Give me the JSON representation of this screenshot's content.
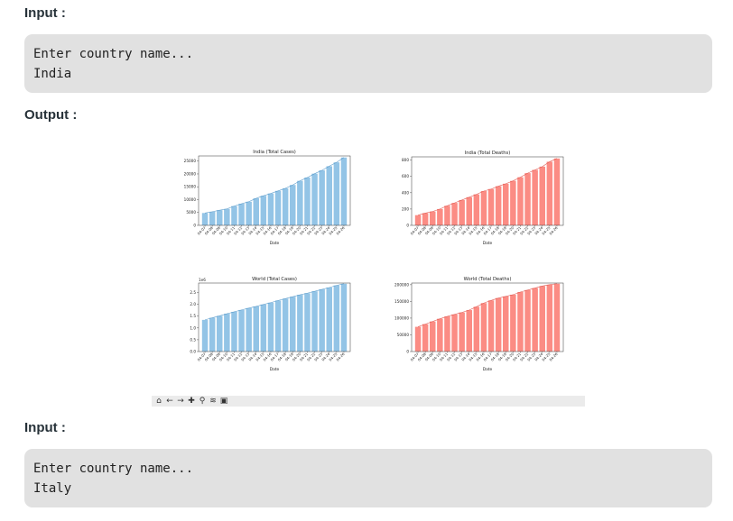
{
  "sections": [
    {
      "heading": "Input :",
      "lines": [
        "Enter country name...",
        "India"
      ]
    },
    {
      "heading": "Output :"
    },
    {
      "heading": "Input :",
      "lines": [
        "Enter country name...",
        "Italy"
      ]
    }
  ],
  "toolbar": {
    "icons": [
      "home-icon",
      "back-icon",
      "forward-icon",
      "pan-icon",
      "zoom-icon",
      "configure-subplots-icon",
      "save-icon"
    ]
  },
  "colors": {
    "cases": "#93c4e6",
    "deaths": "#fb8c84",
    "cases_edge": "#5c9ccb",
    "deaths_edge": "#e05b53"
  },
  "chart_data": [
    {
      "type": "bar",
      "title": "India (Total Cases)",
      "xlabel": "Date",
      "ylabel": "",
      "categories": [
        "04-07",
        "04-08",
        "04-09",
        "04-10",
        "04-11",
        "04-12",
        "04-13",
        "04-14",
        "04-15",
        "04-16",
        "04-17",
        "04-18",
        "04-19",
        "04-20",
        "04-21",
        "04-22",
        "04-23",
        "04-24",
        "04-25",
        "04-26"
      ],
      "values": [
        4800,
        5300,
        5900,
        6400,
        7500,
        8400,
        9200,
        10500,
        11500,
        12400,
        13400,
        14400,
        15700,
        17300,
        18600,
        20100,
        21400,
        23000,
        24500,
        26400
      ],
      "ylim": [
        0,
        27000
      ],
      "yticks": [
        0,
        5000,
        10000,
        15000,
        20000,
        25000
      ],
      "ytick_labels": [
        "0",
        "5000",
        "10000",
        "15000",
        "20000",
        "25000"
      ],
      "scale_label": "",
      "color": "cases"
    },
    {
      "type": "bar",
      "title": "India (Total Deaths)",
      "xlabel": "Date",
      "ylabel": "",
      "categories": [
        "04-07",
        "04-08",
        "04-09",
        "04-10",
        "04-11",
        "04-12",
        "04-13",
        "04-14",
        "04-15",
        "04-16",
        "04-17",
        "04-18",
        "04-19",
        "04-20",
        "04-21",
        "04-22",
        "04-23",
        "04-24",
        "04-25",
        "04-26"
      ],
      "values": [
        125,
        150,
        170,
        200,
        240,
        275,
        310,
        345,
        380,
        420,
        445,
        480,
        510,
        545,
        590,
        640,
        680,
        720,
        780,
        820
      ],
      "ylim": [
        0,
        840
      ],
      "yticks": [
        0,
        200,
        400,
        600,
        800
      ],
      "ytick_labels": [
        "0",
        "200",
        "400",
        "600",
        "800"
      ],
      "scale_label": "",
      "color": "deaths"
    },
    {
      "type": "bar",
      "title": "World (Total Cases)",
      "xlabel": "Date",
      "ylabel": "",
      "categories": [
        "04-07",
        "04-08",
        "04-09",
        "04-10",
        "04-11",
        "04-12",
        "04-13",
        "04-14",
        "04-15",
        "04-16",
        "04-17",
        "04-18",
        "04-19",
        "04-20",
        "04-21",
        "04-22",
        "04-23",
        "04-24",
        "04-25",
        "04-26"
      ],
      "values": [
        1.34,
        1.43,
        1.51,
        1.6,
        1.68,
        1.76,
        1.84,
        1.91,
        1.99,
        2.07,
        2.16,
        2.24,
        2.32,
        2.4,
        2.47,
        2.55,
        2.63,
        2.71,
        2.8,
        2.87
      ],
      "ylim": [
        0,
        2.9
      ],
      "yticks": [
        0,
        0.5,
        1.0,
        1.5,
        2.0,
        2.5
      ],
      "ytick_labels": [
        "0.0",
        "0.5",
        "1.0",
        "1.5",
        "2.0",
        "2.5"
      ],
      "scale_label": "1e6",
      "color": "cases"
    },
    {
      "type": "bar",
      "title": "World (Total Deaths)",
      "xlabel": "Date",
      "ylabel": "",
      "categories": [
        "04-07",
        "04-08",
        "04-09",
        "04-10",
        "04-11",
        "04-12",
        "04-13",
        "04-14",
        "04-15",
        "04-16",
        "04-17",
        "04-18",
        "04-19",
        "04-20",
        "04-21",
        "04-22",
        "04-23",
        "04-24",
        "04-25",
        "04-26"
      ],
      "values": [
        74000,
        82000,
        90000,
        98000,
        105000,
        111000,
        117000,
        124000,
        134000,
        145000,
        153000,
        160000,
        165000,
        170000,
        178000,
        184000,
        190000,
        196000,
        200000,
        203000
      ],
      "ylim": [
        0,
        205000
      ],
      "yticks": [
        0,
        50000,
        100000,
        150000,
        200000
      ],
      "ytick_labels": [
        "0",
        "50000",
        "100000",
        "150000",
        "200000"
      ],
      "scale_label": "",
      "color": "deaths"
    }
  ]
}
